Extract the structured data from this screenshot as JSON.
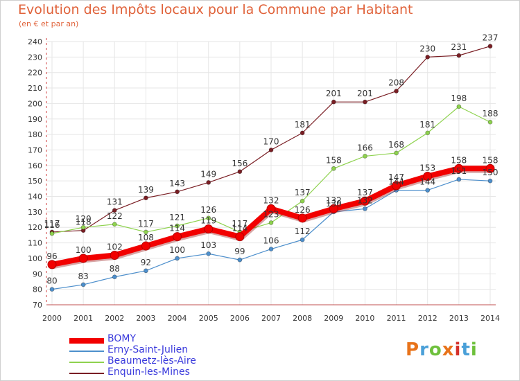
{
  "title": "Evolution des Impôts locaux pour la Commune par Habitant",
  "subtitle": "(en € et par an)",
  "brand": {
    "text": "Proxiti",
    "colors": [
      "#e8731a",
      "#4aa0d8",
      "#6ec03c",
      "#e8731a",
      "#d4302a",
      "#4aa0d8",
      "#6ec03c"
    ]
  },
  "chart_data": {
    "type": "line",
    "x": [
      "2000",
      "2001",
      "2002",
      "2003",
      "2004",
      "2005",
      "2006",
      "2007",
      "2008",
      "2009",
      "2010",
      "2011",
      "2012",
      "2013",
      "2014"
    ],
    "ylim": [
      70,
      240
    ],
    "yticks": [
      70,
      80,
      90,
      100,
      110,
      120,
      130,
      140,
      150,
      160,
      170,
      180,
      190,
      200,
      210,
      220,
      230,
      240
    ],
    "grid": true,
    "legend": "bottom-left",
    "series": [
      {
        "name": "Enquin-les-Mines",
        "color": "#7a1e24",
        "values": [
          117,
          118,
          131,
          139,
          143,
          149,
          156,
          170,
          181,
          201,
          201,
          208,
          230,
          231,
          237
        ]
      },
      {
        "name": "Beaumetz-lès-Aire",
        "color": "#8ed24e",
        "values": [
          116,
          120,
          122,
          117,
          121,
          126,
          117,
          123,
          137,
          158,
          166,
          168,
          181,
          198,
          188
        ]
      },
      {
        "name": "Erny-Saint-Julien",
        "color": "#4d8fcc",
        "values": [
          80,
          83,
          88,
          92,
          100,
          103,
          99,
          106,
          112,
          130,
          132,
          144,
          144,
          151,
          150
        ]
      },
      {
        "name": "BOMY",
        "color": "#f20000",
        "values": [
          96,
          100,
          102,
          108,
          114,
          119,
          114,
          132,
          126,
          132,
          137,
          147,
          153,
          158,
          158
        ]
      }
    ],
    "labels": [
      {
        "series": "Enquin-les-Mines",
        "values": [
          "117",
          "118",
          "131",
          "139",
          "143",
          "149",
          "156",
          "170",
          "181",
          "201",
          "201",
          "208",
          "230",
          "231",
          "237"
        ]
      },
      {
        "series": "Beaumetz-lès-Aire",
        "values": [
          "116",
          "120",
          "122",
          "117",
          "121",
          "126",
          "117",
          "123",
          "137",
          "158",
          "166",
          "168",
          "181",
          "198",
          "188"
        ]
      },
      {
        "series": "Erny-Saint-Julien",
        "values": [
          "80",
          "83",
          "88",
          "92",
          "100",
          "103",
          "99",
          "106",
          "112",
          "130",
          "132",
          "144",
          "144",
          "151",
          "150"
        ]
      },
      {
        "series": "BOMY",
        "values": [
          "96",
          "100",
          "102",
          "108",
          "114",
          "119",
          "114",
          "132",
          "126",
          "132",
          "137",
          "147",
          "153",
          "158",
          "158"
        ]
      }
    ]
  },
  "legend_items": [
    {
      "name": "BOMY",
      "color": "#f20000"
    },
    {
      "name": "Erny-Saint-Julien",
      "color": "#4d8fcc"
    },
    {
      "name": "Beaumetz-lès-Aire",
      "color": "#8ed24e"
    },
    {
      "name": "Enquin-les-Mines",
      "color": "#7a1e24"
    }
  ]
}
